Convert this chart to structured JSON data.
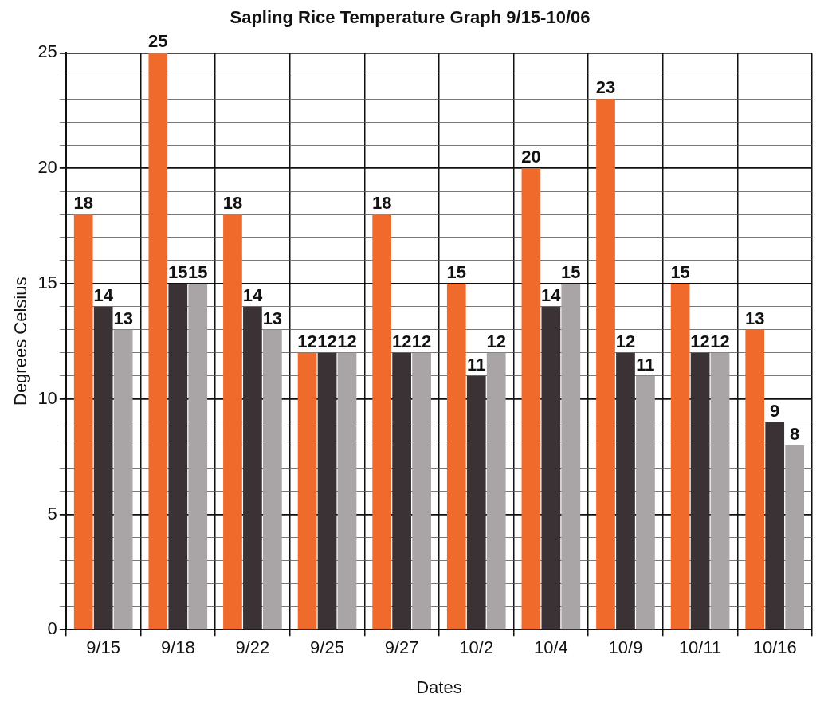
{
  "chart_data": {
    "type": "bar",
    "title": "Sapling Rice Temperature Graph 9/15-10/06",
    "xlabel": "Dates",
    "ylabel": "Degrees Celsius",
    "categories": [
      "9/15",
      "9/18",
      "9/22",
      "9/25",
      "9/27",
      "10/2",
      "10/4",
      "10/9",
      "10/11",
      "10/16"
    ],
    "series": [
      {
        "color": "#f06a2c",
        "values": [
          18,
          25,
          18,
          12,
          18,
          15,
          20,
          23,
          15,
          13
        ]
      },
      {
        "color": "#3a3235",
        "values": [
          14,
          15,
          14,
          12,
          12,
          11,
          14,
          12,
          12,
          9
        ]
      },
      {
        "color": "#a9a4a6",
        "values": [
          13,
          15,
          13,
          12,
          12,
          12,
          15,
          11,
          12,
          8
        ]
      }
    ],
    "ylim": [
      0,
      25
    ],
    "yticks": [
      0,
      {
        "value": 1,
        "label": null
      },
      {
        "value": 2,
        "label": null
      },
      {
        "value": 3,
        "label": null
      },
      {
        "value": 4,
        "label": null
      },
      5,
      {
        "value": 6,
        "label": null
      },
      {
        "value": 7,
        "label": null
      },
      {
        "value": 8,
        "label": null
      },
      {
        "value": 9,
        "label": null
      },
      10,
      {
        "value": 11,
        "label": null
      },
      {
        "value": 12,
        "label": null
      },
      {
        "value": 13,
        "label": null
      },
      {
        "value": 14,
        "label": null
      },
      15,
      {
        "value": 16,
        "label": null
      },
      {
        "value": 17,
        "label": null
      },
      {
        "value": 18,
        "label": null
      },
      {
        "value": 19,
        "label": null
      },
      20,
      {
        "value": 21,
        "label": null
      },
      {
        "value": 22,
        "label": null
      },
      {
        "value": 23,
        "label": null
      },
      {
        "value": 24,
        "label": null
      },
      25
    ],
    "grid": true,
    "data_labels": true
  }
}
